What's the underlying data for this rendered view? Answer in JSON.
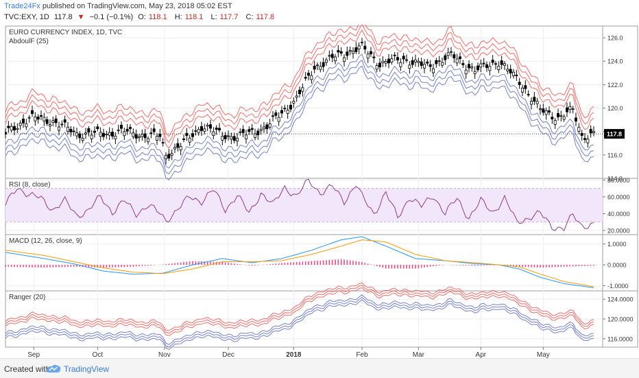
{
  "header": {
    "publisher": "Trade24Fx",
    "published_text": "published on TradingView.com, May 23, 2018 05:02 EST",
    "symbol": "TVC:EXY, 1D",
    "last": "117.8",
    "change": "−0.1 (−0.1%)",
    "o_label": "O:",
    "o": "118.1",
    "h_label": "H:",
    "h": "118.1",
    "l_label": "L:",
    "l": "117.7",
    "c_label": "C:",
    "c": "117.8"
  },
  "footer": {
    "created": "Created with",
    "brand": "TradingView"
  },
  "chart_data": {
    "type": "line",
    "x_labels": [
      "Sep",
      "Oct",
      "Nov",
      "Dec",
      "2018",
      "Feb",
      "Mar",
      "Apr",
      "May"
    ],
    "x_label_pos": [
      1.5,
      23,
      45.5,
      67,
      89,
      112,
      131,
      152,
      173
    ],
    "x_range": [
      -8,
      193
    ],
    "colors": {
      "red": "#ef5350",
      "blue": "#5c6bc0",
      "macd": "#2196f3",
      "signal": "#ff9800",
      "hist": "#e91e63",
      "rsi": "#8e3b8e",
      "rsi_band": "#f2e6fb",
      "price_tag": "#000000"
    },
    "panels": [
      {
        "id": "price",
        "title": "EURO CURRENCY INDEX, 1D, TVC",
        "subtitle": "AbdoulF (25)",
        "ylim": [
          114,
          127
        ],
        "ticks": [
          "126.0",
          "124.0",
          "122.0",
          "120.0",
          "118.0",
          "116.0",
          "114.0"
        ],
        "tick_values": [
          126,
          124,
          122,
          120,
          118,
          116,
          114
        ],
        "last_price": "117.8",
        "last_value": 117.8,
        "close": {
          "x": [
            -8,
            0,
            8,
            16,
            24,
            32,
            40,
            44,
            46,
            52,
            58,
            64,
            70,
            80,
            90,
            96,
            104,
            112,
            118,
            126,
            134,
            142,
            150,
            158,
            166,
            172,
            178,
            183,
            186,
            190
          ],
          "y": [
            117.8,
            119.2,
            118.9,
            117.8,
            117.8,
            118.0,
            117.6,
            117.6,
            116.0,
            117.0,
            118.5,
            117.8,
            117.5,
            118.4,
            120.8,
            123.5,
            124.5,
            125.2,
            123.8,
            124.2,
            123.5,
            124.5,
            123.2,
            124.0,
            122.0,
            119.8,
            119.2,
            119.8,
            117.6,
            117.8
          ]
        },
        "envelope_offsets": [
          1.0,
          1.5,
          2.0
        ]
      },
      {
        "id": "rsi",
        "title": "RSI (8, close)",
        "ylim": [
          15,
          82
        ],
        "ticks": [
          "80.0000",
          "60.0000",
          "40.0000",
          "20.0000"
        ],
        "tick_values": [
          80,
          60,
          40,
          20
        ],
        "band": [
          30,
          70
        ],
        "values": {
          "x": [
            -8,
            -4,
            0,
            4,
            8,
            12,
            16,
            20,
            24,
            28,
            32,
            36,
            40,
            44,
            46,
            50,
            54,
            58,
            62,
            66,
            70,
            74,
            78,
            82,
            86,
            90,
            94,
            98,
            102,
            106,
            110,
            112,
            116,
            120,
            124,
            128,
            132,
            136,
            140,
            144,
            148,
            152,
            156,
            160,
            164,
            168,
            172,
            176,
            180,
            183,
            186,
            190
          ],
          "y": [
            50,
            72,
            62,
            58,
            45,
            55,
            38,
            44,
            60,
            42,
            55,
            40,
            50,
            40,
            32,
            45,
            60,
            55,
            68,
            45,
            62,
            40,
            65,
            50,
            72,
            60,
            80,
            65,
            72,
            55,
            75,
            60,
            40,
            65,
            35,
            60,
            48,
            62,
            40,
            58,
            35,
            55,
            42,
            58,
            30,
            35,
            40,
            25,
            22,
            38,
            26,
            27
          ]
        }
      },
      {
        "id": "macd",
        "title": "MACD (12, 26, close, 9)",
        "ylim": [
          -1.25,
          1.45
        ],
        "ticks": [
          "1.0000",
          "0.0000",
          "-1.0000"
        ],
        "tick_values": [
          1,
          0,
          -1
        ],
        "macd": {
          "x": [
            -8,
            5,
            15,
            25,
            35,
            45,
            55,
            65,
            75,
            85,
            95,
            105,
            112,
            120,
            130,
            140,
            150,
            158,
            165,
            172,
            180,
            190
          ],
          "y": [
            0.6,
            0.3,
            0.05,
            -0.3,
            -0.45,
            -0.4,
            0.0,
            0.3,
            0.1,
            0.3,
            0.7,
            1.2,
            1.35,
            0.9,
            0.3,
            0.2,
            0.05,
            0.0,
            -0.2,
            -0.6,
            -0.9,
            -1.1
          ]
        },
        "signal": {
          "x": [
            -8,
            5,
            15,
            25,
            35,
            45,
            55,
            65,
            75,
            85,
            95,
            105,
            112,
            120,
            130,
            140,
            150,
            158,
            165,
            172,
            180,
            190
          ],
          "y": [
            0.7,
            0.45,
            0.15,
            -0.15,
            -0.35,
            -0.42,
            -0.2,
            0.15,
            0.15,
            0.2,
            0.5,
            0.9,
            1.2,
            1.1,
            0.5,
            0.2,
            0.1,
            0.0,
            -0.1,
            -0.45,
            -0.8,
            -1.05
          ]
        }
      },
      {
        "id": "ranger",
        "title": "Ranger (20)",
        "ylim": [
          114.3,
          125.7
        ],
        "ticks": [
          "124.0000",
          "120.0000",
          "116.0000"
        ],
        "tick_values": [
          124,
          120,
          116
        ],
        "offsets": [
          0.8,
          1.3,
          1.8
        ]
      }
    ]
  }
}
